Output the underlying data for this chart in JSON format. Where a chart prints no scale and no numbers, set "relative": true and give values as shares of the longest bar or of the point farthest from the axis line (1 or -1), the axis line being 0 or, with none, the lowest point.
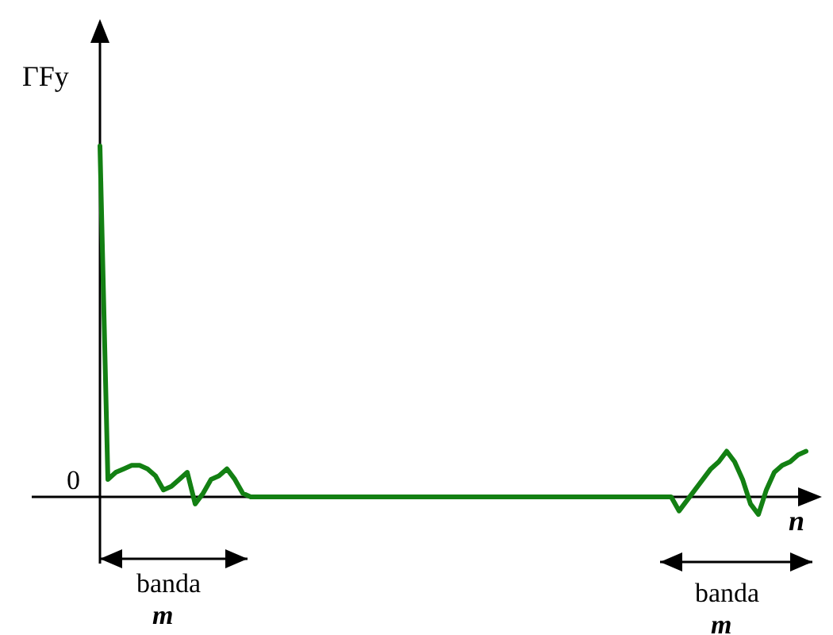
{
  "chart_data": {
    "type": "line",
    "relative": true,
    "ylabel": "ΓFy",
    "xlabel": "n",
    "tick_labels": false,
    "categories": [
      null,
      null,
      null,
      null,
      null,
      null,
      null,
      null,
      null,
      null,
      null,
      null,
      null,
      null,
      null,
      null,
      null,
      null,
      null,
      null,
      null,
      null,
      null,
      null,
      null,
      null,
      null,
      null,
      null,
      null,
      null,
      null,
      null,
      null,
      null,
      null,
      null,
      null,
      null,
      null,
      null,
      null,
      null,
      null,
      null,
      null,
      null,
      null,
      null,
      null,
      null,
      null,
      null,
      null,
      null,
      null,
      null,
      null,
      null,
      null,
      null,
      null,
      null,
      null,
      null,
      null,
      null,
      null,
      null,
      null,
      null,
      null,
      null,
      null,
      null,
      null,
      null,
      null,
      null,
      null,
      null,
      null,
      null,
      null,
      null,
      null,
      null,
      null,
      null,
      null
    ],
    "series": [
      {
        "color": "#138013",
        "values": [
          1,
          0.05,
          0.07,
          0.08,
          0.09,
          0.09,
          0.08,
          0.06,
          0.02,
          0.03,
          0.05,
          0.07,
          -0.02,
          0.01,
          0.05,
          0.06,
          0.08,
          0.05,
          0.01,
          0,
          0,
          0,
          0,
          0,
          0,
          0,
          0,
          0,
          0,
          0,
          0,
          0,
          0,
          0,
          0,
          0,
          0,
          0,
          0,
          0,
          0,
          0,
          0,
          0,
          0,
          0,
          0,
          0,
          0,
          0,
          0,
          0,
          0,
          0,
          0,
          0,
          0,
          0,
          0,
          0,
          0,
          0,
          0,
          0,
          0,
          0,
          0,
          0,
          0,
          0,
          0,
          0,
          0,
          -0.04,
          -0.01,
          0.02,
          0.05,
          0.08,
          0.1,
          0.13,
          0.1,
          0.05,
          -0.02,
          -0.05,
          0.02,
          0.07,
          0.09,
          0.1,
          0.12,
          0.13
        ]
      }
    ],
    "annotations": [
      "0",
      "banda",
      "m",
      "banda",
      "m"
    ]
  }
}
